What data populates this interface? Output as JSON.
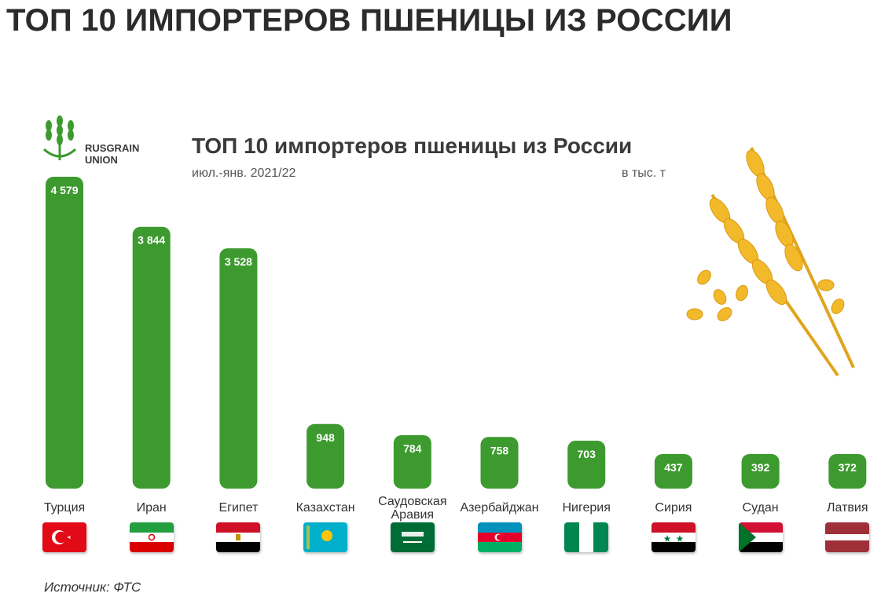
{
  "page_title": "ТОП 10 ИМПОРТЕРОВ ПШЕНИЦЫ ИЗ РОССИИ",
  "logo": {
    "name": "RUSGRAIN\nUNION"
  },
  "source": "Источник: ФТС",
  "colors": {
    "bar": "#3d9a2f",
    "title": "#2b2b2b",
    "wheat": "#f2b92b"
  },
  "chart_data": {
    "type": "bar",
    "title": "ТОП 10 импортеров пшеницы из России",
    "subtitle": "июл.-янв.   2021/22",
    "unit": "в тыс. т",
    "categories": [
      "Турция",
      "Иран",
      "Египет",
      "Казахстан",
      "Саудовская Аравия",
      "Азербайджан",
      "Нигерия",
      "Сирия",
      "Судан",
      "Латвия"
    ],
    "category_lines": [
      [
        "Турция"
      ],
      [
        "Иран"
      ],
      [
        "Египет"
      ],
      [
        "Казахстан"
      ],
      [
        "Саудовская",
        "Аравия"
      ],
      [
        "Азербайджан"
      ],
      [
        "Нигерия"
      ],
      [
        "Сирия"
      ],
      [
        "Судан"
      ],
      [
        "Латвия"
      ]
    ],
    "values": [
      4579,
      3844,
      3528,
      948,
      784,
      758,
      703,
      437,
      392,
      372
    ],
    "value_labels": [
      "4 579",
      "3 844",
      "3 528",
      "948",
      "784",
      "758",
      "703",
      "437",
      "392",
      "372"
    ],
    "flags": [
      "turkey-flag",
      "iran-flag",
      "egypt-flag",
      "kazakhstan-flag",
      "saudi-arabia-flag",
      "azerbaijan-flag",
      "nigeria-flag",
      "syria-flag",
      "sudan-flag",
      "latvia-flag"
    ],
    "ylim": [
      0,
      4579
    ]
  }
}
